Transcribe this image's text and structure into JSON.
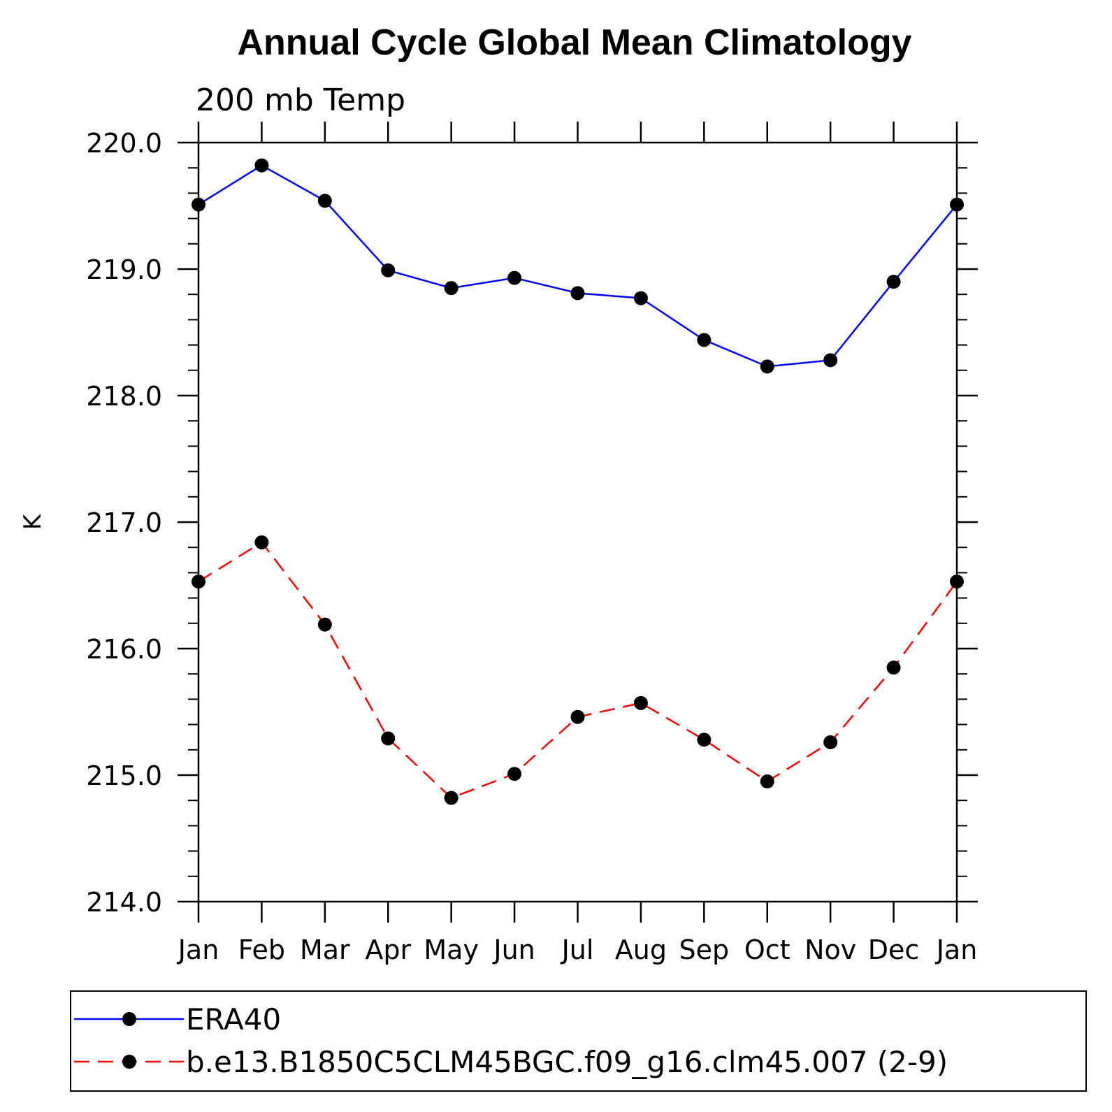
{
  "chart_data": {
    "type": "line",
    "title": "Annual Cycle Global Mean Climatology",
    "subtitle": "200 mb Temp",
    "xlabel": "",
    "ylabel": "K",
    "categories": [
      "Jan",
      "Feb",
      "Mar",
      "Apr",
      "May",
      "Jun",
      "Jul",
      "Aug",
      "Sep",
      "Oct",
      "Nov",
      "Dec",
      "Jan"
    ],
    "ylim": [
      214.0,
      220.0
    ],
    "yticks": [
      "214.0",
      "215.0",
      "216.0",
      "217.0",
      "218.0",
      "219.0",
      "220.0"
    ],
    "grid": false,
    "legend_position": "bottom",
    "series": [
      {
        "name": "ERA40",
        "color": "#0000ff",
        "line_style": "solid",
        "marker": "filled-circle",
        "values": [
          219.51,
          219.82,
          219.54,
          218.99,
          218.85,
          218.93,
          218.81,
          218.77,
          218.44,
          218.23,
          218.28,
          218.9,
          219.51
        ]
      },
      {
        "name": "b.e13.B1850C5CLM45BGC.f09_g16.clm45.007 (2-9)",
        "color": "#ff0000",
        "line_style": "dashed",
        "marker": "filled-circle",
        "values": [
          216.53,
          216.84,
          216.19,
          215.29,
          214.82,
          215.01,
          215.46,
          215.57,
          215.28,
          214.95,
          215.26,
          215.85,
          216.53
        ]
      }
    ]
  }
}
